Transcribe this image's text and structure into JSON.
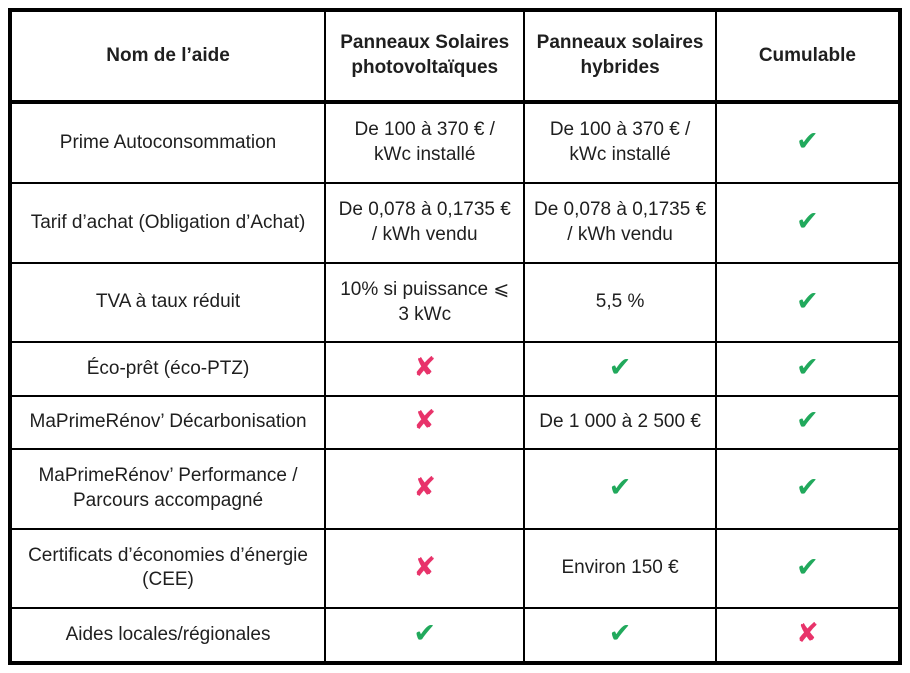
{
  "colors": {
    "check_green": "#21a95c",
    "cross_red": "#e8336a",
    "border_black": "#000000"
  },
  "marks": {
    "check_glyph": "✔",
    "cross_glyph": "✘"
  },
  "table": {
    "headers": [
      "Nom de l’aide",
      "Panneaux Solaires photovoltaïques",
      "Panneaux solaires hybrides",
      "Cumulable"
    ],
    "rows": [
      {
        "name": "Prime Autoconsommation",
        "pv": "De 100 à 370 € / kWc installé",
        "hybrid": "De 100 à 370 € / kWc installé",
        "cumulable": "✔"
      },
      {
        "name": "Tarif d’achat (Obligation d’Achat)",
        "pv": "De 0,078 à 0,1735 € / kWh vendu",
        "hybrid": "De 0,078 à 0,1735 € / kWh vendu",
        "cumulable": "✔"
      },
      {
        "name": "TVA à taux réduit",
        "pv": "10% si puissance ⩽ 3 kWc",
        "hybrid": "5,5 %",
        "cumulable": "✔"
      },
      {
        "name": "Éco-prêt (éco-PTZ)",
        "pv": "✘",
        "hybrid": "✔",
        "cumulable": "✔"
      },
      {
        "name": "MaPrimeRénov’ Décarbonisation",
        "pv": "✘",
        "hybrid": "De 1 000 à 2 500 €",
        "cumulable": "✔"
      },
      {
        "name": "MaPrimeRénov’ Performance / Parcours accompagné",
        "pv": "✘",
        "hybrid": "✔",
        "cumulable": "✔"
      },
      {
        "name": "Certificats d’économies d’énergie (CEE)",
        "pv": "✘",
        "hybrid": "Environ 150 €",
        "cumulable": "✔"
      },
      {
        "name": "Aides locales/régionales",
        "pv": "✔",
        "hybrid": "✔",
        "cumulable": "✘"
      }
    ]
  }
}
